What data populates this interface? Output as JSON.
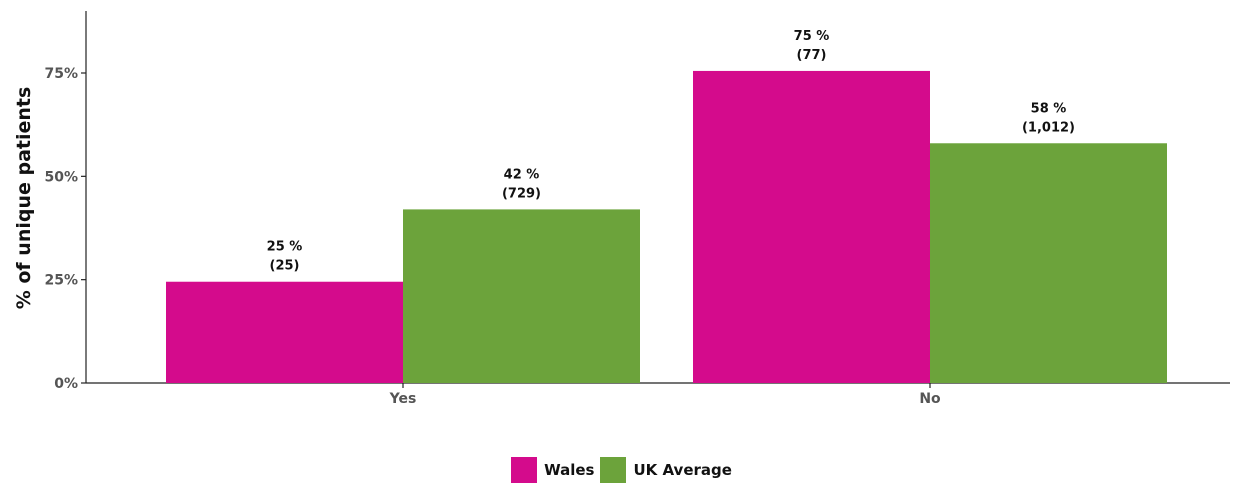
{
  "chart_data": {
    "type": "bar",
    "ylabel": "% of unique patients",
    "xlabel": "",
    "categories": [
      "Yes",
      "No"
    ],
    "ylim": [
      0,
      90
    ],
    "yticks": [
      0,
      25,
      50,
      75
    ],
    "ytick_labels": [
      "0%",
      "25%",
      "50%",
      "75%"
    ],
    "series": [
      {
        "name": "Wales",
        "color": "#d40b8c",
        "values": [
          24.5,
          75.5
        ],
        "labels": [
          "25 %",
          "75 %"
        ],
        "counts": [
          "(25)",
          "(77)"
        ]
      },
      {
        "name": "UK Average",
        "color": "#6ca33b",
        "values": [
          42,
          58
        ],
        "labels": [
          "42 %",
          "58 %"
        ],
        "counts": [
          "(729)",
          "(1,012)"
        ]
      }
    ],
    "legend_position": "bottom-center",
    "grid": false
  }
}
